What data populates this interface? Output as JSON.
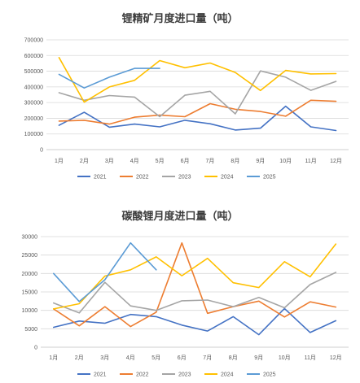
{
  "chart_data": [
    {
      "type": "line",
      "title": "锂精矿月度进口量（吨）",
      "categories": [
        "1月",
        "2月",
        "3月",
        "4月",
        "5月",
        "6月",
        "7月",
        "8月",
        "9月",
        "10月",
        "11月",
        "12月"
      ],
      "yticks": [
        "0",
        "100000",
        "200000",
        "300000",
        "400000",
        "500000",
        "600000",
        "700000"
      ],
      "ylim": [
        0,
        700000
      ],
      "grid": true,
      "legend_position": "bottom",
      "series": [
        {
          "name": "2021",
          "color": "#4472c4",
          "values": [
            155000,
            238000,
            143000,
            163000,
            145000,
            187000,
            165000,
            125000,
            137000,
            277000,
            145000,
            122000
          ]
        },
        {
          "name": "2022",
          "color": "#ed7d31",
          "values": [
            182000,
            187000,
            163000,
            207000,
            220000,
            210000,
            293000,
            257000,
            243000,
            213000,
            315000,
            308000
          ]
        },
        {
          "name": "2023",
          "color": "#a5a5a5",
          "values": [
            363000,
            315000,
            345000,
            335000,
            210000,
            347000,
            372000,
            228000,
            502000,
            462000,
            378000,
            435000
          ]
        },
        {
          "name": "2024",
          "color": "#ffc000",
          "values": [
            587000,
            303000,
            400000,
            442000,
            568000,
            522000,
            552000,
            492000,
            377000,
            505000,
            483000,
            485000
          ]
        },
        {
          "name": "2025",
          "color": "#5b9bd5",
          "values": [
            480000,
            393000,
            462000,
            518000,
            518000,
            null,
            null,
            null,
            null,
            null,
            null,
            null
          ]
        }
      ]
    },
    {
      "type": "line",
      "title": "碳酸锂月度进口量（吨）",
      "categories": [
        "1月",
        "2月",
        "3月",
        "4月",
        "5月",
        "6月",
        "7月",
        "8月",
        "9月",
        "10月",
        "11月",
        "12月"
      ],
      "yticks": [
        "0",
        "5000",
        "10000",
        "15000",
        "20000",
        "25000",
        "30000"
      ],
      "ylim": [
        0,
        30000
      ],
      "grid": true,
      "legend_position": "bottom",
      "series": [
        {
          "name": "2021",
          "color": "#4472c4",
          "values": [
            5400,
            7100,
            6500,
            8900,
            8300,
            6000,
            4400,
            8300,
            3400,
            10500,
            4000,
            7200
          ]
        },
        {
          "name": "2022",
          "color": "#ed7d31",
          "values": [
            10400,
            5800,
            11000,
            5600,
            9500,
            28300,
            9200,
            11000,
            12500,
            8200,
            12300,
            10900
          ]
        },
        {
          "name": "2023",
          "color": "#a5a5a5",
          "values": [
            12000,
            9300,
            17600,
            11200,
            10000,
            12600,
            12800,
            11000,
            13500,
            10700,
            17000,
            20300
          ]
        },
        {
          "name": "2024",
          "color": "#ffc000",
          "values": [
            10400,
            11800,
            19300,
            21000,
            24500,
            19400,
            24100,
            17500,
            16200,
            23200,
            19100,
            28000
          ]
        },
        {
          "name": "2025",
          "color": "#5b9bd5",
          "values": [
            20000,
            12400,
            18300,
            28300,
            21000,
            null,
            null,
            null,
            null,
            null,
            null,
            null
          ]
        }
      ]
    }
  ]
}
